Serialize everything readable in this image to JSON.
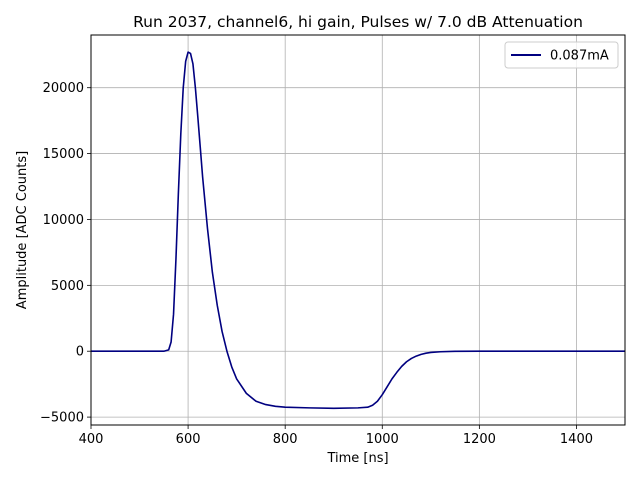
{
  "chart_data": {
    "type": "line",
    "title": "Run 2037, channel6, hi gain, Pulses w/ 7.0 dB Attenuation",
    "xlabel": "Time [ns]",
    "ylabel": "Amplitude [ADC Counts]",
    "xlim": [
      400,
      1500
    ],
    "ylim": [
      -5600,
      24000
    ],
    "xticks": [
      400,
      600,
      800,
      1000,
      1200,
      1400
    ],
    "yticks": [
      -5000,
      0,
      5000,
      10000,
      15000,
      20000
    ],
    "xtick_labels": [
      "400",
      "600",
      "800",
      "1000",
      "1200",
      "1400"
    ],
    "ytick_labels": [
      "−5000",
      "0",
      "5000",
      "10000",
      "15000",
      "20000"
    ],
    "grid": true,
    "legend_position": "top-right",
    "series": [
      {
        "name": "0.087mA",
        "color": "#000080",
        "x": [
          400,
          450,
          500,
          550,
          560,
          565,
          570,
          575,
          580,
          585,
          590,
          595,
          600,
          605,
          610,
          615,
          620,
          625,
          630,
          640,
          650,
          660,
          670,
          680,
          690,
          700,
          720,
          740,
          760,
          780,
          800,
          850,
          900,
          950,
          970,
          980,
          990,
          1000,
          1010,
          1020,
          1030,
          1040,
          1050,
          1060,
          1070,
          1080,
          1090,
          1100,
          1120,
          1150,
          1200,
          1300,
          1400,
          1500
        ],
        "y": [
          0,
          0,
          0,
          0,
          100,
          700,
          2800,
          7000,
          12000,
          16500,
          20000,
          22000,
          22700,
          22600,
          21800,
          20000,
          17800,
          15500,
          13200,
          9300,
          6000,
          3500,
          1500,
          0,
          -1200,
          -2100,
          -3200,
          -3800,
          -4050,
          -4180,
          -4250,
          -4300,
          -4330,
          -4300,
          -4250,
          -4100,
          -3800,
          -3300,
          -2700,
          -2100,
          -1600,
          -1150,
          -800,
          -550,
          -370,
          -240,
          -150,
          -90,
          -40,
          -10,
          0,
          0,
          0,
          0
        ]
      }
    ]
  }
}
